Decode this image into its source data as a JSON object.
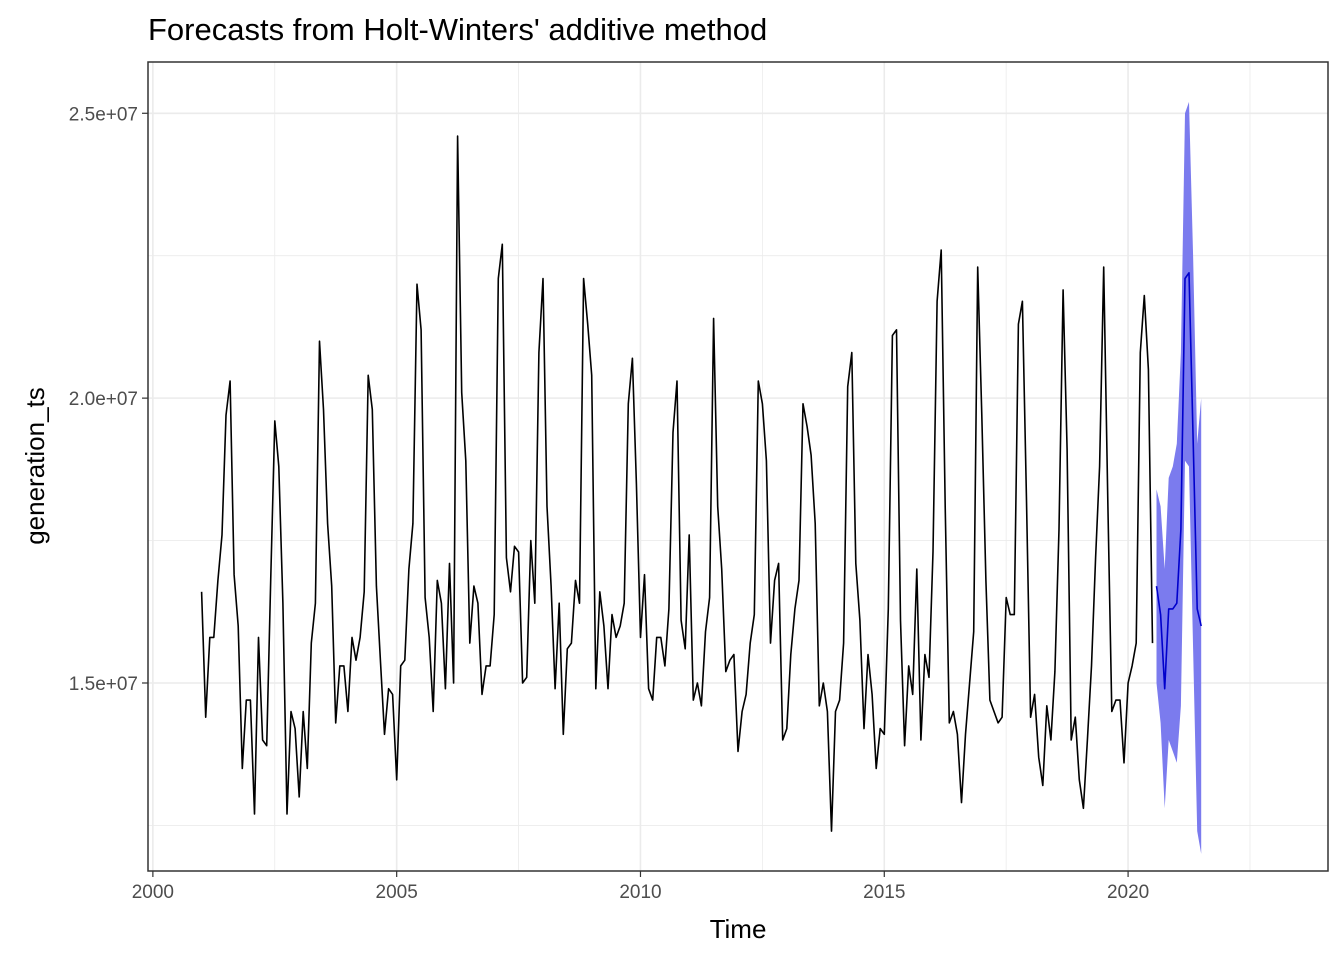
{
  "chart_data": {
    "type": "line",
    "title": "Forecasts from Holt-Winters' additive method",
    "xlabel": "Time",
    "ylabel": "generation_ts",
    "xlim": [
      1999.9,
      2024.1
    ],
    "ylim": [
      11700000,
      25900000
    ],
    "x_ticks": [
      {
        "value": 2000,
        "label": "2000"
      },
      {
        "value": 2005,
        "label": "2005"
      },
      {
        "value": 2010,
        "label": "2010"
      },
      {
        "value": 2015,
        "label": "2015"
      },
      {
        "value": 2020,
        "label": "2020"
      }
    ],
    "y_ticks": [
      {
        "value": 15000000,
        "label": "1.5e+07"
      },
      {
        "value": 20000000,
        "label": "2.0e+07"
      },
      {
        "value": 25000000,
        "label": "2.5e+07"
      }
    ],
    "grid": true,
    "start_year": 2001,
    "frequency": 12,
    "observed": [
      16600000,
      14400000,
      15800000,
      15800000,
      16800000,
      17600000,
      19700000,
      20300000,
      16900000,
      16000000,
      13500000,
      14700000,
      14700000,
      12700000,
      15800000,
      14000000,
      13900000,
      16800000,
      19600000,
      18800000,
      16400000,
      12700000,
      14500000,
      14200000,
      13000000,
      14500000,
      13500000,
      15700000,
      16400000,
      21000000,
      19800000,
      17800000,
      16700000,
      14300000,
      15300000,
      15300000,
      14500000,
      15800000,
      15400000,
      15800000,
      16600000,
      20400000,
      19800000,
      16700000,
      15400000,
      14100000,
      14900000,
      14800000,
      13300000,
      15300000,
      15400000,
      17000000,
      17800000,
      22000000,
      21200000,
      16500000,
      15800000,
      14500000,
      16800000,
      16400000,
      14900000,
      17100000,
      15000000,
      24600000,
      20100000,
      18900000,
      15700000,
      16700000,
      16400000,
      14800000,
      15300000,
      15300000,
      16200000,
      22100000,
      22700000,
      17200000,
      16600000,
      17400000,
      17300000,
      15000000,
      15100000,
      17500000,
      16400000,
      20800000,
      22100000,
      18100000,
      16700000,
      14900000,
      16400000,
      14100000,
      15600000,
      15700000,
      16800000,
      16400000,
      22100000,
      21300000,
      20400000,
      14900000,
      16600000,
      16000000,
      14900000,
      16200000,
      15800000,
      16000000,
      16400000,
      19900000,
      20700000,
      18500000,
      15800000,
      16900000,
      14900000,
      14700000,
      15800000,
      15800000,
      15300000,
      16300000,
      19400000,
      20300000,
      16100000,
      15600000,
      17600000,
      14700000,
      15000000,
      14600000,
      15900000,
      16500000,
      21400000,
      18100000,
      17000000,
      15200000,
      15400000,
      15500000,
      13800000,
      14500000,
      14800000,
      15700000,
      16200000,
      20300000,
      19900000,
      18900000,
      15700000,
      16800000,
      17100000,
      14000000,
      14200000,
      15500000,
      16300000,
      16800000,
      19900000,
      19500000,
      19000000,
      17800000,
      14600000,
      15000000,
      14500000,
      12400000,
      14500000,
      14700000,
      15700000,
      20200000,
      20800000,
      17100000,
      16100000,
      14200000,
      15500000,
      14800000,
      13500000,
      14200000,
      14100000,
      16300000,
      21100000,
      21200000,
      16100000,
      13900000,
      15300000,
      14800000,
      17000000,
      14000000,
      15500000,
      15100000,
      17300000,
      21700000,
      22600000,
      18100000,
      14300000,
      14500000,
      14100000,
      12900000,
      14100000,
      15000000,
      15900000,
      22300000,
      19700000,
      16800000,
      14700000,
      14500000,
      14300000,
      14400000,
      16500000,
      16200000,
      16200000,
      21300000,
      21700000,
      18200000,
      14400000,
      14800000,
      13700000,
      13200000,
      14600000,
      14000000,
      15200000,
      17700000,
      21900000,
      19100000,
      14000000,
      14400000,
      13300000,
      12800000,
      14000000,
      15300000,
      17200000,
      18800000,
      22300000,
      18200000,
      14500000,
      14700000,
      14700000,
      13600000,
      15000000,
      15300000,
      15700000,
      20800000,
      21800000,
      20500000,
      15700000
    ],
    "forecast": [
      16700000,
      16200000,
      14900000,
      16300000,
      16300000,
      16400000,
      17700000,
      22100000,
      22200000,
      19300000,
      16300000,
      16000000
    ],
    "forecast_lower": [
      15000000,
      14300000,
      12800000,
      14000000,
      13800000,
      13600000,
      14600000,
      18900000,
      18800000,
      15600000,
      12400000,
      12000000
    ],
    "forecast_upper": [
      18400000,
      18100000,
      17000000,
      18600000,
      18800000,
      19200000,
      20800000,
      25000000,
      25200000,
      22500000,
      19200000,
      20000000
    ],
    "colors": {
      "observed_line": "#000000",
      "forecast_line": "#0000cc",
      "interval_fill": "#7b7bee",
      "grid": "#ebebeb",
      "panel_border": "#333333",
      "tick_label": "#4d4d4d"
    }
  }
}
